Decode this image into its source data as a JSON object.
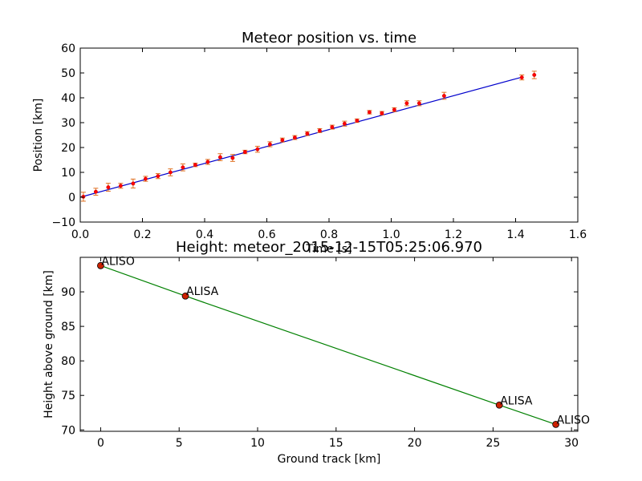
{
  "chart_data": [
    {
      "type": "scatter",
      "title": "Meteor position vs. time",
      "xlabel": "Time [s]",
      "ylabel": "Position [km]",
      "xlim": [
        0.0,
        1.6
      ],
      "ylim": [
        -10,
        60
      ],
      "xticks": [
        "0.0",
        "0.2",
        "0.4",
        "0.6",
        "0.8",
        "1.0",
        "1.2",
        "1.4",
        "1.6"
      ],
      "yticks": [
        "−10",
        "0",
        "10",
        "20",
        "30",
        "40",
        "50",
        "60"
      ],
      "grid": false,
      "marker_color": "#ff0000",
      "errorbar_color": "#e07020",
      "fit_color": "#0000cc",
      "points": [
        {
          "x": 0.01,
          "y": 0.2,
          "err": 1.8
        },
        {
          "x": 0.05,
          "y": 2.2,
          "err": 1.4
        },
        {
          "x": 0.09,
          "y": 4.0,
          "err": 1.6
        },
        {
          "x": 0.13,
          "y": 4.6,
          "err": 1.0
        },
        {
          "x": 0.17,
          "y": 5.5,
          "err": 1.8
        },
        {
          "x": 0.21,
          "y": 7.4,
          "err": 1.0
        },
        {
          "x": 0.25,
          "y": 8.5,
          "err": 1.0
        },
        {
          "x": 0.29,
          "y": 10.0,
          "err": 1.4
        },
        {
          "x": 0.33,
          "y": 12.0,
          "err": 1.4
        },
        {
          "x": 0.37,
          "y": 13.0,
          "err": 0.7
        },
        {
          "x": 0.41,
          "y": 14.2,
          "err": 1.0
        },
        {
          "x": 0.45,
          "y": 16.1,
          "err": 1.4
        },
        {
          "x": 0.49,
          "y": 15.8,
          "err": 1.4
        },
        {
          "x": 0.53,
          "y": 18.2,
          "err": 0.7
        },
        {
          "x": 0.57,
          "y": 19.3,
          "err": 1.2
        },
        {
          "x": 0.61,
          "y": 21.3,
          "err": 1.0
        },
        {
          "x": 0.65,
          "y": 23.0,
          "err": 0.8
        },
        {
          "x": 0.69,
          "y": 24.0,
          "err": 0.8
        },
        {
          "x": 0.73,
          "y": 25.6,
          "err": 0.8
        },
        {
          "x": 0.77,
          "y": 26.8,
          "err": 0.8
        },
        {
          "x": 0.81,
          "y": 28.2,
          "err": 0.8
        },
        {
          "x": 0.85,
          "y": 29.6,
          "err": 1.0
        },
        {
          "x": 0.89,
          "y": 30.8,
          "err": 0.7
        },
        {
          "x": 0.93,
          "y": 34.2,
          "err": 0.7
        },
        {
          "x": 0.97,
          "y": 33.8,
          "err": 0.7
        },
        {
          "x": 1.01,
          "y": 35.2,
          "err": 0.8
        },
        {
          "x": 1.05,
          "y": 37.8,
          "err": 1.0
        },
        {
          "x": 1.09,
          "y": 37.8,
          "err": 1.0
        },
        {
          "x": 1.17,
          "y": 40.8,
          "err": 1.4
        },
        {
          "x": 1.42,
          "y": 48.2,
          "err": 1.0
        },
        {
          "x": 1.46,
          "y": 49.2,
          "err": 1.5
        }
      ],
      "fit_line": {
        "x": [
          0.0,
          1.42
        ],
        "y": [
          0.0,
          48.3
        ]
      }
    },
    {
      "type": "line",
      "title": "Height: meteor_2015-12-15T05:25:06.970",
      "xlabel": "Ground track [km]",
      "ylabel": "Height above ground [km]",
      "xlim": [
        -1.3,
        30.4
      ],
      "ylim": [
        69.8,
        95.0
      ],
      "xticks": [
        {
          "v": 0,
          "label": "0"
        },
        {
          "v": 5,
          "label": "5"
        },
        {
          "v": 10,
          "label": "10"
        },
        {
          "v": 15,
          "label": "15"
        },
        {
          "v": 20,
          "label": "20"
        },
        {
          "v": 25,
          "label": "25"
        },
        {
          "v": 30,
          "label": "30"
        }
      ],
      "yticks": [
        {
          "v": 70,
          "label": "70"
        },
        {
          "v": 75,
          "label": "75"
        },
        {
          "v": 80,
          "label": "80"
        },
        {
          "v": 85,
          "label": "85"
        },
        {
          "v": 90,
          "label": "90"
        }
      ],
      "grid": false,
      "line_color": "#008000",
      "marker_color": "#cc2200",
      "points": [
        {
          "x": 0.0,
          "y": 93.8,
          "label": "ALISO"
        },
        {
          "x": 5.4,
          "y": 89.4,
          "label": "ALISA"
        },
        {
          "x": 25.4,
          "y": 73.6,
          "label": "ALISA"
        },
        {
          "x": 29.0,
          "y": 70.8,
          "label": "ALISO"
        }
      ]
    }
  ]
}
